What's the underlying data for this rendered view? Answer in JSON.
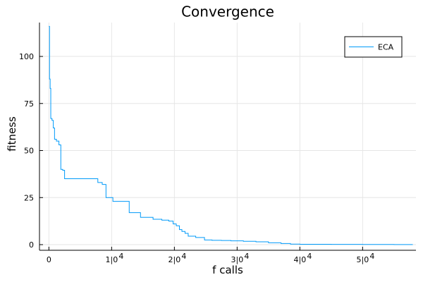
{
  "chart_data": {
    "type": "line",
    "title": "Convergence",
    "xlabel": "f calls",
    "ylabel": "fitness",
    "xlim": [
      -1500,
      58500
    ],
    "ylim": [
      -3,
      118
    ],
    "x_ticks": [
      {
        "value": 0,
        "label": "0"
      },
      {
        "value": 10000,
        "label": "1|0",
        "exp": "4"
      },
      {
        "value": 20000,
        "label": "2|0",
        "exp": "4"
      },
      {
        "value": 30000,
        "label": "3|0",
        "exp": "4"
      },
      {
        "value": 40000,
        "label": "4|0",
        "exp": "4"
      },
      {
        "value": 50000,
        "label": "5|0",
        "exp": "4"
      }
    ],
    "y_ticks": [
      {
        "value": 0,
        "label": "0"
      },
      {
        "value": 25,
        "label": "25"
      },
      {
        "value": 50,
        "label": "50"
      },
      {
        "value": 75,
        "label": "75"
      },
      {
        "value": 100,
        "label": "100"
      }
    ],
    "grid": true,
    "legend_position": "top-right",
    "colors": {
      "series": "#009af9",
      "grid": "#e6e6e6",
      "axis": "#000000"
    },
    "series": [
      {
        "name": "ECA",
        "step": true,
        "x": [
          0,
          100,
          200,
          300,
          500,
          700,
          900,
          1200,
          1600,
          1900,
          2200,
          2500,
          3200,
          4000,
          5000,
          6000,
          7000,
          7800,
          8500,
          9100,
          9400,
          10200,
          11000,
          12800,
          14600,
          16600,
          18000,
          19100,
          19800,
          20300,
          20800,
          21200,
          21700,
          22200,
          23400,
          24800,
          26000,
          27500,
          29000,
          31000,
          33000,
          35000,
          37000,
          38500,
          40000,
          45000,
          50000,
          55000,
          58000
        ],
        "y": [
          116,
          88,
          83,
          67,
          66,
          62,
          56,
          55,
          53,
          40,
          39.5,
          35,
          35,
          35,
          35,
          35,
          35,
          33,
          32,
          25,
          25,
          23,
          23,
          17,
          14.5,
          13.5,
          13,
          12.5,
          11,
          10,
          8,
          7,
          6,
          4.5,
          3.8,
          2.5,
          2.3,
          2.2,
          2,
          1.8,
          1.5,
          1,
          0.6,
          0.3,
          0.2,
          0.15,
          0.1,
          0.05,
          0.05
        ]
      }
    ]
  }
}
